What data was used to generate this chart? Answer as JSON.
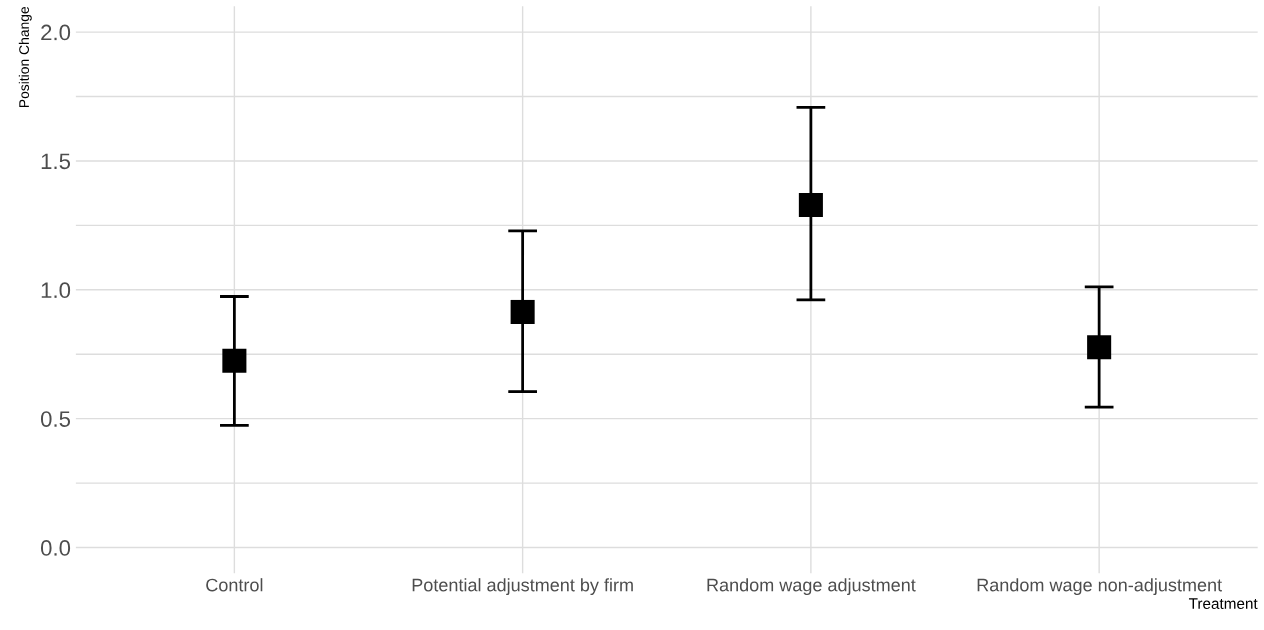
{
  "chart_data": {
    "type": "scatter",
    "xlabel": "Treatment",
    "ylabel": "Position Change",
    "categories": [
      "Control",
      "Potential adjustment by firm",
      "Random wage adjustment",
      "Random wage non-adjustment"
    ],
    "values": [
      0.725,
      0.914,
      1.329,
      0.777
    ],
    "errors": [
      [
        0.474,
        0.974
      ],
      [
        0.605,
        1.229
      ],
      [
        0.961,
        1.708
      ],
      [
        0.545,
        1.011
      ]
    ],
    "color": "#000000",
    "marker": "square",
    "ylim": [
      -0.1,
      2.1
    ],
    "yticks": [
      {
        "value": 0,
        "label": "0.0"
      },
      {
        "value": 0.25,
        "label": null
      },
      0.5,
      {
        "value": 0.75,
        "label": null
      },
      {
        "value": 1,
        "label": "1.0"
      },
      {
        "value": 1.25,
        "label": null
      },
      1.5,
      {
        "value": 1.75,
        "label": null
      },
      {
        "value": 2,
        "label": "2.0"
      }
    ],
    "grid": true
  }
}
